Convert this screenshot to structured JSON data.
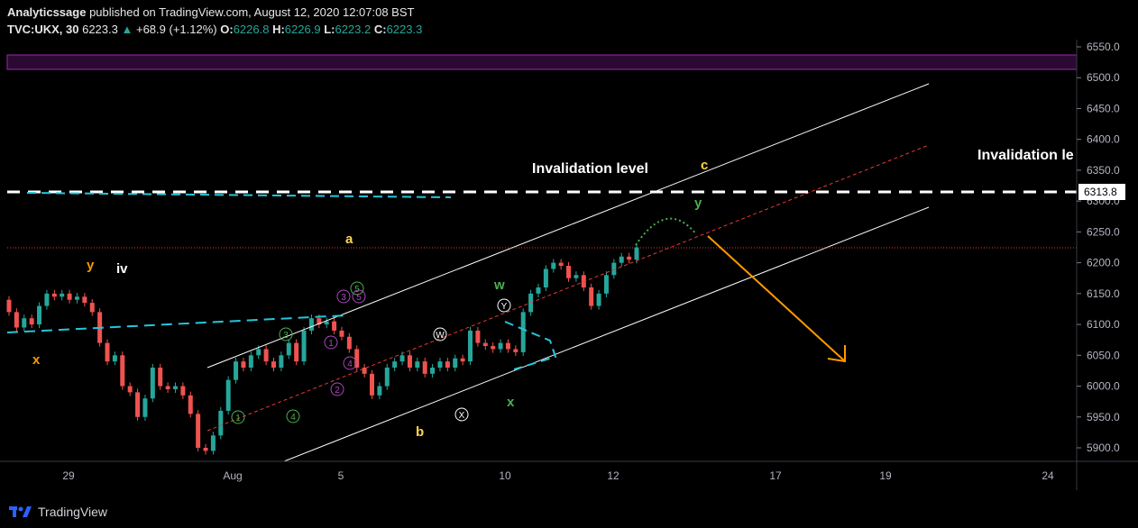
{
  "header": {
    "publisher": "Analyticssage",
    "published_text": "published on TradingView.com, August 12, 2020 12:07:08 BST",
    "symbol": "TVC:UKX, 30",
    "last": "6223.3",
    "change": "+68.9 (+1.12%)",
    "o_label": "O:",
    "o": "6226.8",
    "h_label": "H:",
    "h": "6226.9",
    "l_label": "L:",
    "l": "6223.2",
    "c_label": "C:",
    "c": "6223.3"
  },
  "brand": {
    "name": "TradingView",
    "icon": "tradingview-logo-icon"
  },
  "colors": {
    "background": "#000000",
    "up": "#26a69a",
    "down": "#ef5350",
    "purple_band": "#9c27b0",
    "dashed_white": "#ffffff",
    "cyan": "#26c6da",
    "orange_arrow": "#ff9800",
    "red_dotted": "#e53935",
    "wave_yellow": "#ffd54f",
    "wave_orange": "#ff9800",
    "wave_green": "#4caf50",
    "wave_purple": "#ab47bc"
  },
  "chart_data": {
    "type": "candlestick",
    "symbol": "TVC:UKX",
    "interval": "30",
    "y_axis": {
      "ticks": [
        "5900.0",
        "5950.0",
        "6000.0",
        "6050.0",
        "6100.0",
        "6150.0",
        "6200.0",
        "6250.0",
        "6300.0",
        "6350.0",
        "6400.0",
        "6450.0",
        "6500.0",
        "6550.0"
      ],
      "ylim": [
        5880,
        6560
      ]
    },
    "x_axis": {
      "ticks": [
        "29",
        "Aug",
        "5",
        "10",
        "12",
        "17",
        "19",
        "24"
      ]
    },
    "price_label": "6313.8",
    "invalidation_level": 6313.8,
    "horizontal_red_dotted": 6225,
    "purple_band": [
      6512,
      6537
    ],
    "annotations": [
      {
        "text": "Invalidation level",
        "type": "label"
      },
      {
        "text": "Invalidation le",
        "type": "label"
      },
      {
        "text": "c",
        "type": "wave"
      },
      {
        "text": "y",
        "type": "wave"
      },
      {
        "text": "a",
        "type": "wave"
      },
      {
        "text": "y",
        "type": "wave"
      },
      {
        "text": "iv",
        "type": "wave"
      },
      {
        "text": "x",
        "type": "wave"
      },
      {
        "text": "w",
        "type": "wave"
      },
      {
        "text": "x",
        "type": "wave"
      },
      {
        "text": "b",
        "type": "wave"
      },
      {
        "text": "Y",
        "type": "circled"
      },
      {
        "text": "W",
        "type": "circled"
      },
      {
        "text": "X",
        "type": "circled"
      },
      {
        "text": "1",
        "type": "circled"
      },
      {
        "text": "2",
        "type": "circled"
      },
      {
        "text": "3",
        "type": "circled"
      },
      {
        "text": "4",
        "type": "circled"
      },
      {
        "text": "5",
        "type": "circled"
      }
    ],
    "price_path": [
      [
        6140,
        6120
      ],
      [
        6120,
        6095
      ],
      [
        6095,
        6110
      ],
      [
        6110,
        6100
      ],
      [
        6100,
        6130
      ],
      [
        6130,
        6150
      ],
      [
        6150,
        6145
      ],
      [
        6145,
        6150
      ],
      [
        6150,
        6140
      ],
      [
        6140,
        6145
      ],
      [
        6145,
        6135
      ],
      [
        6135,
        6120
      ],
      [
        6120,
        6070
      ],
      [
        6070,
        6040
      ],
      [
        6040,
        6050
      ],
      [
        6050,
        6000
      ],
      [
        6000,
        5990
      ],
      [
        5990,
        5950
      ],
      [
        5950,
        5980
      ],
      [
        5980,
        6030
      ],
      [
        6030,
        6000
      ],
      [
        6000,
        5995
      ],
      [
        5995,
        6000
      ],
      [
        6000,
        5985
      ],
      [
        5985,
        5955
      ],
      [
        5955,
        5900
      ],
      [
        5900,
        5895
      ],
      [
        5895,
        5920
      ],
      [
        5920,
        5960
      ],
      [
        5960,
        6010
      ],
      [
        6010,
        6040
      ],
      [
        6040,
        6030
      ],
      [
        6030,
        6050
      ],
      [
        6050,
        6060
      ],
      [
        6060,
        6040
      ],
      [
        6040,
        6030
      ],
      [
        6030,
        6050
      ],
      [
        6050,
        6070
      ],
      [
        6070,
        6040
      ],
      [
        6040,
        6090
      ],
      [
        6090,
        6110
      ],
      [
        6110,
        6100
      ],
      [
        6100,
        6105
      ],
      [
        6105,
        6090
      ],
      [
        6090,
        6080
      ],
      [
        6080,
        6060
      ],
      [
        6060,
        6030
      ],
      [
        6030,
        6020
      ],
      [
        6020,
        5985
      ],
      [
        5985,
        6000
      ],
      [
        6000,
        6030
      ],
      [
        6030,
        6040
      ],
      [
        6040,
        6050
      ],
      [
        6050,
        6030
      ],
      [
        6030,
        6040
      ],
      [
        6040,
        6020
      ],
      [
        6020,
        6030
      ],
      [
        6030,
        6040
      ],
      [
        6040,
        6030
      ],
      [
        6030,
        6045
      ],
      [
        6045,
        6040
      ],
      [
        6040,
        6090
      ],
      [
        6090,
        6070
      ],
      [
        6070,
        6065
      ],
      [
        6065,
        6060
      ],
      [
        6060,
        6070
      ],
      [
        6070,
        6060
      ],
      [
        6060,
        6055
      ],
      [
        6055,
        6120
      ],
      [
        6120,
        6150
      ],
      [
        6150,
        6160
      ],
      [
        6160,
        6190
      ],
      [
        6190,
        6200
      ],
      [
        6200,
        6195
      ],
      [
        6195,
        6175
      ],
      [
        6175,
        6180
      ],
      [
        6180,
        6160
      ],
      [
        6160,
        6130
      ],
      [
        6130,
        6150
      ],
      [
        6150,
        6180
      ],
      [
        6180,
        6200
      ],
      [
        6200,
        6210
      ],
      [
        6210,
        6205
      ],
      [
        6205,
        6225
      ]
    ]
  }
}
